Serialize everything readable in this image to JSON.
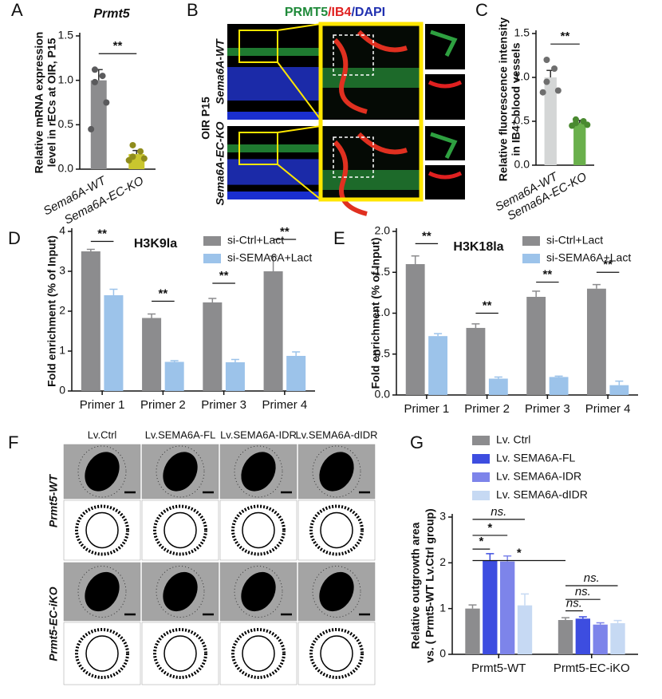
{
  "panel_labels": [
    "A",
    "B",
    "C",
    "D",
    "E",
    "F",
    "G"
  ],
  "chart_data": [
    {
      "type": "bar",
      "title": "Prmt5",
      "ylabel": [
        "Relative mRNA expression",
        "level in rECs at OIR, P15"
      ],
      "categories": [
        "Sema6A-WT",
        "Sema6A-EC-KO"
      ],
      "values": [
        1.0,
        0.17
      ],
      "errors": [
        0.12,
        0.04
      ],
      "colors": [
        "#8c8c8e",
        "#c9c62e"
      ],
      "point_colors": [
        "#5a5a5c",
        "#8f8c1c"
      ],
      "points": [
        [
          1.12,
          1.05,
          0.98,
          0.75,
          0.45
        ],
        [
          0.27,
          0.2,
          0.14,
          0.12,
          0.1
        ]
      ],
      "ylim": [
        0,
        1.5
      ],
      "yticks": [
        {
          "value": 0,
          "label": "0.0"
        },
        {
          "value": 0.5,
          "label": "0.5"
        },
        {
          "value": 1,
          "label": "1.0"
        },
        {
          "value": 1.5,
          "label": "1.5"
        }
      ],
      "annotations": [
        "**"
      ]
    },
    {
      "type": "bar",
      "ylabel": [
        "Relative fluorescence intensity",
        "in IB4⁺ blood vessels"
      ],
      "categories": [
        "Sema6A-WT",
        "Sema6A-EC-KO"
      ],
      "values": [
        1.0,
        0.48
      ],
      "errors": [
        0.08,
        0.03
      ],
      "colors": [
        "#d4d6d6",
        "#6ab04c"
      ],
      "point_colors": [
        "#6e6e6e",
        "#4a8a30"
      ],
      "points": [
        [
          1.2,
          1.1,
          0.95,
          0.85,
          0.83
        ],
        [
          0.52,
          0.5,
          0.48,
          0.46,
          0.45
        ]
      ],
      "ylim": [
        0,
        1.5
      ],
      "yticks": [
        {
          "value": 0,
          "label": "0.0"
        },
        {
          "value": 0.5,
          "label": "0.5"
        },
        {
          "value": 1,
          "label": "1.0"
        },
        {
          "value": 1.5,
          "label": "1.5"
        }
      ],
      "annotations": [
        "**"
      ]
    },
    {
      "type": "bar",
      "title": "H3K9la",
      "ylabel": [
        "Fold enrichment (% of Input)"
      ],
      "categories": [
        "Primer 1",
        "Primer 2",
        "Primer 3",
        "Primer 4"
      ],
      "series": [
        {
          "name": "si-Ctrl+Lact",
          "color": "#8c8c8e",
          "values": [
            3.5,
            1.83,
            2.22,
            3.0
          ],
          "errors": [
            0.05,
            0.1,
            0.1,
            0.38
          ]
        },
        {
          "name": "si-SEMA6A+Lact",
          "color": "#9cc3ea",
          "values": [
            2.4,
            0.73,
            0.72,
            0.88
          ],
          "errors": [
            0.15,
            0.03,
            0.07,
            0.1
          ]
        }
      ],
      "ylim": [
        0,
        4
      ],
      "yticks": [
        0,
        1,
        2,
        3,
        4
      ],
      "annotations": [
        "**",
        "**",
        "**",
        "**"
      ]
    },
    {
      "type": "bar",
      "title": "H3K18la",
      "ylabel": [
        "Fold enrichment (% of Input)"
      ],
      "categories": [
        "Primer 1",
        "Primer 2",
        "Primer 3",
        "Primer 4"
      ],
      "series": [
        {
          "name": "si-Ctrl+Lact",
          "color": "#8c8c8e",
          "values": [
            1.6,
            0.82,
            1.2,
            1.3
          ],
          "errors": [
            0.1,
            0.05,
            0.07,
            0.05
          ]
        },
        {
          "name": "si-SEMA6A+Lact",
          "color": "#9cc3ea",
          "values": [
            0.72,
            0.2,
            0.22,
            0.12
          ],
          "errors": [
            0.03,
            0.02,
            0.01,
            0.05
          ]
        }
      ],
      "ylim": [
        0,
        2
      ],
      "yticks": [
        {
          "value": 0,
          "label": "0.0"
        },
        {
          "value": 0.5,
          "label": "0.5"
        },
        {
          "value": 1,
          "label": "1.0"
        },
        {
          "value": 1.5,
          "label": "1.5"
        },
        {
          "value": 2,
          "label": "2.0"
        }
      ],
      "annotations": [
        "**",
        "**",
        "**",
        "**"
      ]
    },
    {
      "type": "bar",
      "ylabel": [
        "Relative outgrowth area",
        "vs. ( Prmt5-WT Lv.Ctrl group)"
      ],
      "categories": [
        "Prmt5-WT",
        "Prmt5-EC-iKO"
      ],
      "series": [
        {
          "name": "Lv. Ctrl",
          "color": "#8c8c8e",
          "values": [
            1.0,
            0.75
          ],
          "errors": [
            0.08,
            0.05
          ]
        },
        {
          "name": "Lv. SEMA6A-FL",
          "color": "#3d4de0",
          "values": [
            2.05,
            0.78
          ],
          "errors": [
            0.15,
            0.04
          ]
        },
        {
          "name": "Lv. SEMA6A-IDR",
          "color": "#7d84ea",
          "values": [
            2.03,
            0.65
          ],
          "errors": [
            0.12,
            0.04
          ]
        },
        {
          "name": "Lv. SEMA6A-dIDR",
          "color": "#c6d9f3",
          "values": [
            1.07,
            0.68
          ],
          "errors": [
            0.25,
            0.06
          ]
        }
      ],
      "ylim": [
        0,
        3
      ],
      "yticks": [
        0,
        1,
        2,
        3
      ],
      "annotations": [
        "ns.",
        "*",
        "*",
        "*",
        "ns.",
        "ns.",
        "ns."
      ]
    }
  ],
  "panel_b": {
    "title_parts": [
      "PRMT5",
      "/IB4",
      "/DAPI"
    ],
    "title_colors": [
      "#1f8a3a",
      "#e02020",
      "#2030b0"
    ],
    "rows": [
      "Sema6A-WT",
      "Sema6A-EC-KO"
    ],
    "side_label": "OIR P15"
  },
  "panel_f": {
    "columns": [
      "Lv.Ctrl",
      "Lv.SEMA6A-FL",
      "Lv.SEMA6A-IDR",
      "Lv.SEMA6A-dIDR"
    ],
    "rows": [
      "Prmt5-WT",
      "Prmt5-EC-iKO"
    ]
  }
}
